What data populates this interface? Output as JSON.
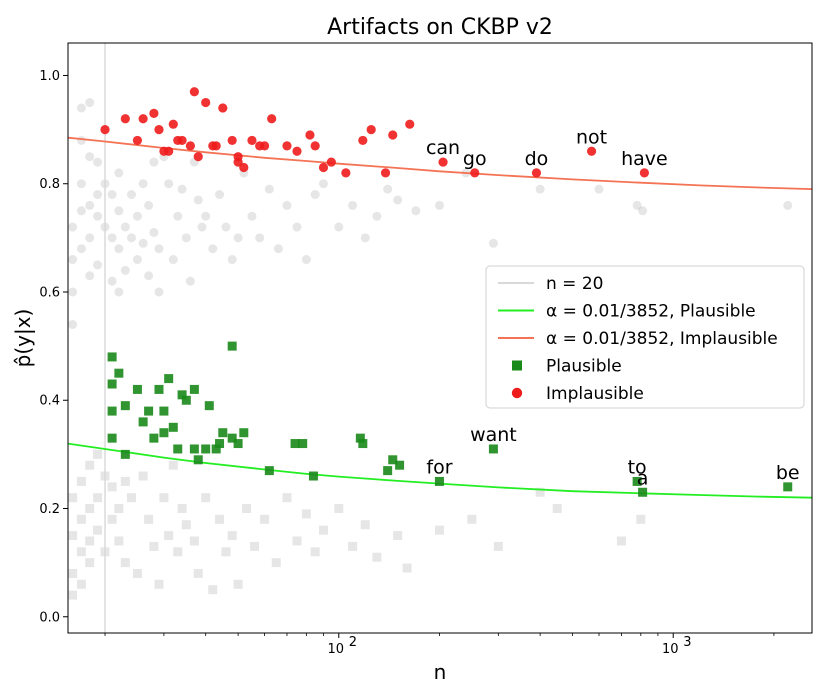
{
  "chart_data": {
    "type": "scatter",
    "title": "Artifacts on CKBP v2",
    "xlabel": "n",
    "ylabel": "p̂(y|x)",
    "xscale": "log",
    "xlim": [
      15.5,
      2600
    ],
    "ylim": [
      -0.03,
      1.06
    ],
    "x_ticks": [
      {
        "value": 100,
        "label": "10",
        "exp": "2"
      },
      {
        "value": 1000,
        "label": "10",
        "exp": "3"
      }
    ],
    "y_ticks": [
      {
        "value": 0.0,
        "label": "0.0"
      },
      {
        "value": 0.2,
        "label": "0.2"
      },
      {
        "value": 0.4,
        "label": "0.4"
      },
      {
        "value": 0.6,
        "label": "0.6"
      },
      {
        "value": 0.8,
        "label": "0.8"
      },
      {
        "value": 1.0,
        "label": "1.0"
      }
    ],
    "vline": {
      "x": 20,
      "name": "n = 20"
    },
    "colors": {
      "implausible": "#ee1c1c",
      "plausible": "#1a8a1a",
      "plausible_curve": "#22ee22",
      "implausible_curve": "#f47355",
      "vline": "#d9d9d9",
      "faded": "#8c8c8c"
    },
    "legend": {
      "location": "center-right",
      "entries": [
        {
          "key": "vline",
          "text": "n = 20"
        },
        {
          "key": "plausible_curve",
          "text": "α = 0.01/3852, Plausible"
        },
        {
          "key": "implausible_curve",
          "text": "α = 0.01/3852, Implausible"
        },
        {
          "key": "plausible",
          "text": "Plausible"
        },
        {
          "key": "implausible",
          "text": "Implausible"
        }
      ]
    },
    "series": [
      {
        "name": "α = 0.01/3852, Implausible",
        "kind": "line",
        "x": [
          15.5,
          20,
          30,
          40,
          60,
          80,
          100,
          150,
          200,
          300,
          500,
          800,
          1200,
          1800,
          2600
        ],
        "y": [
          0.885,
          0.878,
          0.866,
          0.858,
          0.848,
          0.842,
          0.837,
          0.829,
          0.823,
          0.816,
          0.808,
          0.802,
          0.797,
          0.793,
          0.79
        ]
      },
      {
        "name": "α = 0.01/3852, Plausible",
        "kind": "line",
        "x": [
          15.5,
          20,
          30,
          40,
          60,
          80,
          100,
          150,
          200,
          300,
          500,
          800,
          1200,
          1800,
          2600
        ],
        "y": [
          0.32,
          0.31,
          0.294,
          0.284,
          0.272,
          0.264,
          0.259,
          0.251,
          0.246,
          0.239,
          0.232,
          0.228,
          0.225,
          0.222,
          0.22
        ]
      },
      {
        "name": "Implausible",
        "kind": "scatter",
        "x": [
          20,
          23,
          25,
          26,
          28,
          29,
          30,
          31,
          32,
          33,
          34,
          36,
          37,
          38,
          40,
          42,
          43,
          45,
          48,
          50,
          50,
          52,
          55,
          58,
          60,
          63,
          70,
          75,
          82,
          85,
          90,
          95,
          105,
          118,
          125,
          138,
          145,
          163
        ],
        "y": [
          0.9,
          0.92,
          0.88,
          0.92,
          0.93,
          0.9,
          0.86,
          0.86,
          0.91,
          0.88,
          0.88,
          0.87,
          0.97,
          0.85,
          0.95,
          0.87,
          0.87,
          0.94,
          0.88,
          0.85,
          0.84,
          0.83,
          0.88,
          0.87,
          0.87,
          0.92,
          0.87,
          0.86,
          0.89,
          0.87,
          0.83,
          0.84,
          0.82,
          0.88,
          0.9,
          0.82,
          0.89,
          0.91
        ]
      },
      {
        "name": "Implausible (labeled)",
        "kind": "scatter",
        "x": [
          205,
          255,
          390,
          570,
          820
        ],
        "y": [
          0.84,
          0.82,
          0.82,
          0.86,
          0.82
        ]
      },
      {
        "name": "Plausible",
        "kind": "scatter",
        "x": [
          21,
          21,
          21,
          21,
          22,
          23,
          23,
          25,
          26,
          27,
          28,
          29,
          30,
          30,
          31,
          32,
          33,
          34,
          35,
          37,
          37,
          38,
          40,
          41,
          43,
          44,
          45,
          48,
          48,
          50,
          52,
          62,
          74,
          78,
          84,
          116,
          118,
          140,
          145,
          152,
          200,
          290,
          780
        ],
        "y": [
          0.48,
          0.43,
          0.38,
          0.33,
          0.45,
          0.39,
          0.3,
          0.42,
          0.36,
          0.38,
          0.33,
          0.42,
          0.38,
          0.34,
          0.44,
          0.35,
          0.31,
          0.41,
          0.4,
          0.31,
          0.42,
          0.29,
          0.31,
          0.39,
          0.31,
          0.32,
          0.34,
          0.5,
          0.33,
          0.32,
          0.34,
          0.27,
          0.32,
          0.32,
          0.26,
          0.33,
          0.32,
          0.27,
          0.29,
          0.28,
          0.25,
          0.31,
          0.25
        ]
      },
      {
        "name": "Plausible (labeled)",
        "kind": "scatter",
        "x": [
          810,
          2200
        ],
        "y": [
          0.23,
          0.24
        ]
      }
    ],
    "annotations": [
      {
        "text": "can",
        "x": 205,
        "y": 0.84
      },
      {
        "text": "go",
        "x": 255,
        "y": 0.82
      },
      {
        "text": "do",
        "x": 390,
        "y": 0.82
      },
      {
        "text": "not",
        "x": 570,
        "y": 0.86
      },
      {
        "text": "have",
        "x": 820,
        "y": 0.82
      },
      {
        "text": "want",
        "x": 290,
        "y": 0.31
      },
      {
        "text": "for",
        "x": 200,
        "y": 0.25
      },
      {
        "text": "to",
        "x": 780,
        "y": 0.25
      },
      {
        "text": "a",
        "x": 810,
        "y": 0.23
      },
      {
        "text": "be",
        "x": 2200,
        "y": 0.24
      }
    ],
    "faded_circles": {
      "x": [
        16,
        16,
        16,
        16,
        17,
        17,
        17,
        17,
        17,
        18,
        18,
        18,
        18,
        18,
        19,
        19,
        19,
        19,
        20,
        20,
        21,
        21,
        21,
        22,
        22,
        22,
        22,
        23,
        23,
        24,
        24,
        25,
        25,
        26,
        26,
        27,
        27,
        28,
        28,
        29,
        29,
        30,
        31,
        32,
        33,
        34,
        35,
        36,
        37,
        38,
        39,
        40,
        42,
        44,
        46,
        48,
        50,
        52,
        55,
        58,
        62,
        66,
        70,
        75,
        80,
        85,
        90,
        100,
        110,
        120,
        130,
        140,
        150,
        170,
        200,
        240,
        290,
        400,
        600,
        780,
        810,
        2200
      ],
      "y": [
        0.54,
        0.6,
        0.66,
        0.72,
        0.94,
        0.88,
        0.8,
        0.75,
        0.68,
        0.95,
        0.85,
        0.76,
        0.7,
        0.63,
        0.84,
        0.78,
        0.74,
        0.65,
        0.8,
        0.72,
        0.78,
        0.7,
        0.62,
        0.82,
        0.75,
        0.68,
        0.6,
        0.72,
        0.64,
        0.78,
        0.7,
        0.74,
        0.66,
        0.8,
        0.69,
        0.76,
        0.63,
        0.84,
        0.71,
        0.68,
        0.6,
        0.85,
        0.8,
        0.66,
        0.74,
        0.79,
        0.7,
        0.62,
        0.84,
        0.77,
        0.72,
        0.74,
        0.68,
        0.78,
        0.72,
        0.66,
        0.7,
        0.82,
        0.74,
        0.7,
        0.79,
        0.68,
        0.76,
        0.72,
        0.66,
        0.78,
        0.8,
        0.72,
        0.76,
        0.7,
        0.74,
        0.79,
        0.77,
        0.75,
        0.76,
        0.82,
        0.69,
        0.79,
        0.79,
        0.76,
        0.75,
        0.76
      ]
    },
    "faded_squares": {
      "x": [
        16,
        16,
        16,
        16,
        17,
        17,
        17,
        17,
        18,
        18,
        18,
        18,
        19,
        19,
        19,
        20,
        20,
        21,
        21,
        22,
        22,
        23,
        23,
        24,
        25,
        26,
        27,
        28,
        29,
        30,
        31,
        32,
        33,
        34,
        35,
        37,
        38,
        40,
        42,
        44,
        46,
        48,
        50,
        53,
        56,
        60,
        65,
        70,
        75,
        80,
        85,
        90,
        100,
        110,
        120,
        130,
        150,
        160,
        200,
        250,
        300,
        400,
        450,
        700,
        800
      ],
      "y": [
        0.22,
        0.15,
        0.08,
        0.04,
        0.25,
        0.18,
        0.12,
        0.06,
        0.28,
        0.2,
        0.14,
        0.1,
        0.3,
        0.22,
        0.16,
        0.26,
        0.12,
        0.24,
        0.18,
        0.2,
        0.14,
        0.25,
        0.1,
        0.22,
        0.08,
        0.26,
        0.18,
        0.13,
        0.06,
        0.22,
        0.15,
        0.28,
        0.12,
        0.2,
        0.17,
        0.14,
        0.08,
        0.22,
        0.05,
        0.18,
        0.12,
        0.15,
        0.06,
        0.2,
        0.13,
        0.18,
        0.1,
        0.22,
        0.14,
        0.19,
        0.12,
        0.16,
        0.2,
        0.13,
        0.17,
        0.11,
        0.15,
        0.09,
        0.16,
        0.18,
        0.13,
        0.23,
        0.2,
        0.14,
        0.18
      ]
    }
  }
}
